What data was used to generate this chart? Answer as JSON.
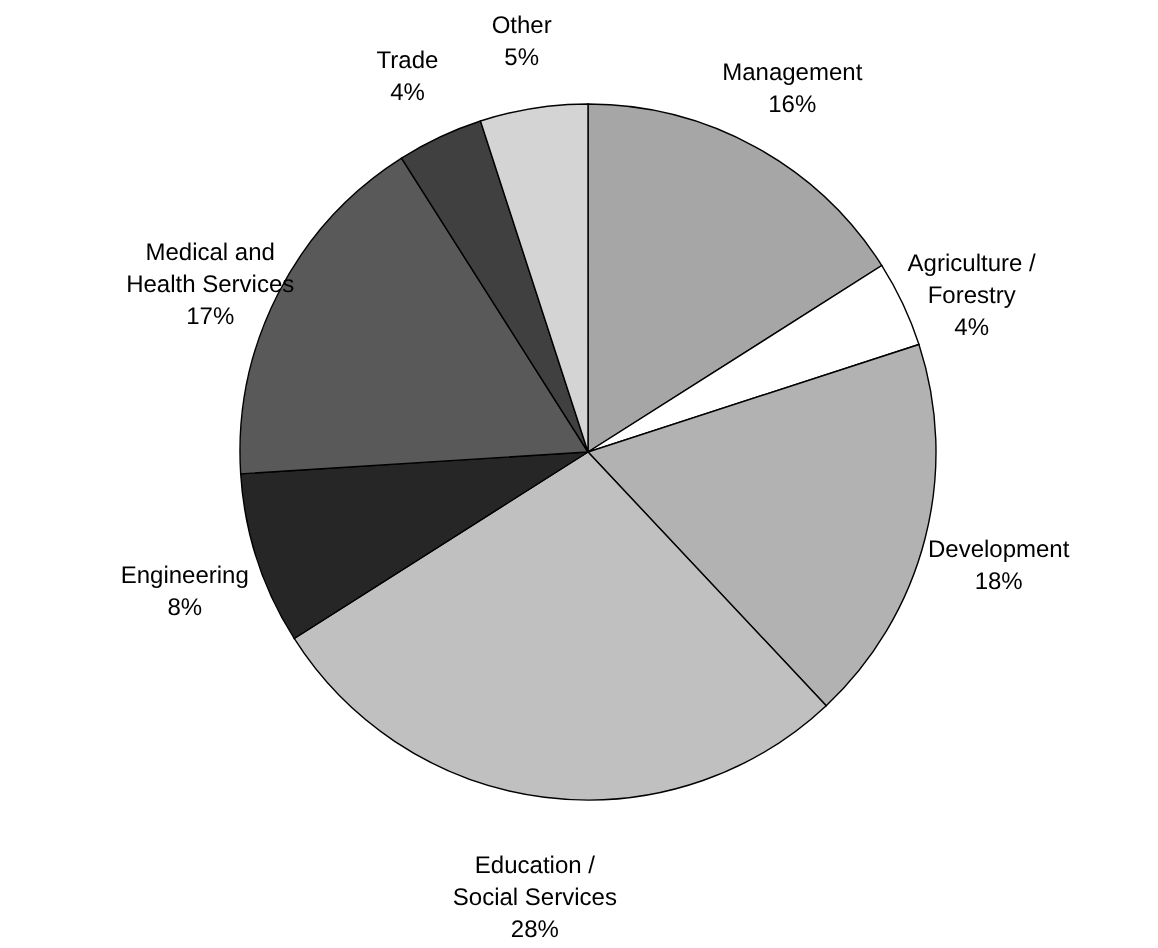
{
  "chart_data": {
    "type": "pie",
    "categories": [
      "Management",
      "Agriculture / Forestry",
      "Development",
      "Education / Social Services",
      "Engineering",
      "Medical and Health Services",
      "Trade",
      "Other"
    ],
    "values": [
      16,
      4,
      18,
      28,
      8,
      17,
      4,
      5
    ],
    "value_labels": [
      "16%",
      "4%",
      "18%",
      "28%",
      "8%",
      "17%",
      "4%",
      "5%"
    ],
    "colors": [
      "#a6a6a6",
      "#ffffff",
      "#b2b2b2",
      "#c0c0c0",
      "#262626",
      "#595959",
      "#404040",
      "#d4d4d4"
    ]
  }
}
